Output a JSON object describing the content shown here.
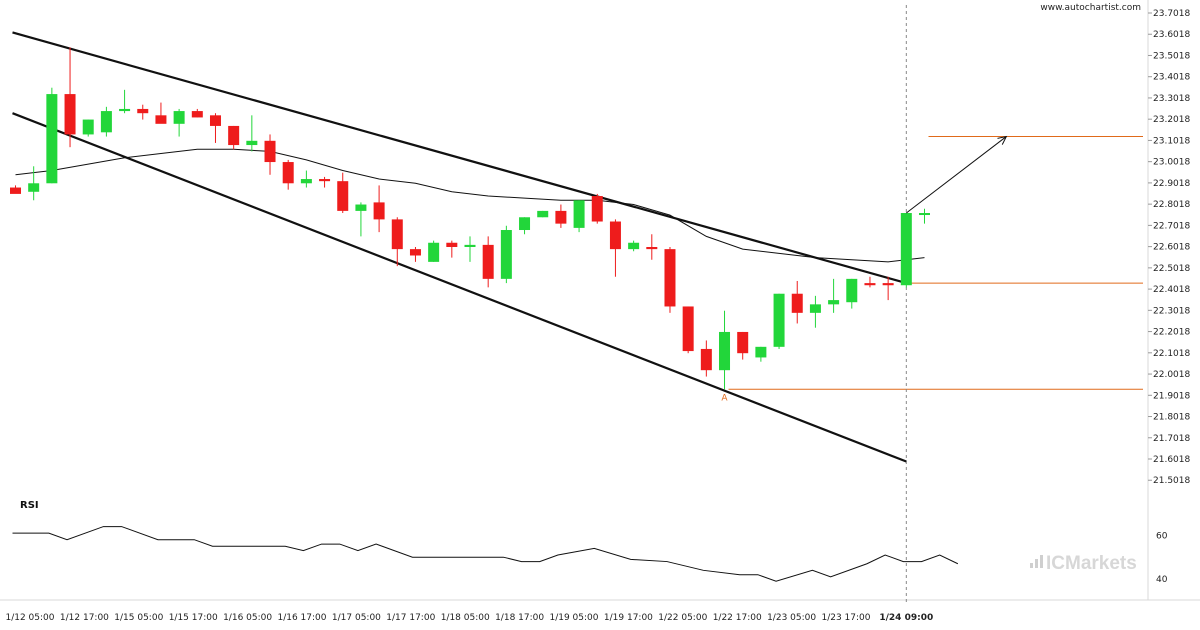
{
  "header": {
    "site": "www.autochartist.com"
  },
  "brand": {
    "name": "ICMarkets"
  },
  "colors": {
    "bull": "#22d63a",
    "bear": "#ee1c1c",
    "line": "#111111",
    "level": "#e06a1a",
    "axis": "#d8d8d8"
  },
  "chart_data": {
    "type": "candlestick",
    "y_ticks": [
      "23.7018",
      "23.6018",
      "23.5018",
      "23.4018",
      "23.3018",
      "23.2018",
      "23.1018",
      "23.0018",
      "22.9018",
      "22.8018",
      "22.7018",
      "22.6018",
      "22.5018",
      "22.4018",
      "22.3018",
      "22.2018",
      "22.1018",
      "22.0018",
      "21.9018",
      "21.8018",
      "21.7018",
      "21.6018",
      "21.5018"
    ],
    "ylim": [
      21.47,
      23.73
    ],
    "x_ticks": [
      "1/12 05:00",
      "1/12 17:00",
      "1/15 05:00",
      "1/15 17:00",
      "1/16 05:00",
      "1/16 17:00",
      "1/17 05:00",
      "1/17 17:00",
      "1/18 05:00",
      "1/18 17:00",
      "1/19 05:00",
      "1/19 17:00",
      "1/22 05:00",
      "1/22 17:00",
      "1/23 05:00",
      "1/23 17:00",
      "1/24 09:00"
    ],
    "highlight_x_tick": "1/24 09:00",
    "candles": [
      {
        "o": 22.88,
        "h": 22.89,
        "l": 22.86,
        "c": 22.85
      },
      {
        "o": 22.86,
        "h": 22.98,
        "l": 22.82,
        "c": 22.9
      },
      {
        "o": 22.9,
        "h": 23.35,
        "l": 22.9,
        "c": 23.32
      },
      {
        "o": 23.32,
        "h": 23.54,
        "l": 23.07,
        "c": 23.13
      },
      {
        "o": 23.13,
        "h": 23.2,
        "l": 23.12,
        "c": 23.2
      },
      {
        "o": 23.14,
        "h": 23.26,
        "l": 23.12,
        "c": 23.24
      },
      {
        "o": 23.24,
        "h": 23.34,
        "l": 23.23,
        "c": 23.25
      },
      {
        "o": 23.25,
        "h": 23.27,
        "l": 23.2,
        "c": 23.23
      },
      {
        "o": 23.22,
        "h": 23.28,
        "l": 23.19,
        "c": 23.18
      },
      {
        "o": 23.18,
        "h": 23.25,
        "l": 23.12,
        "c": 23.24
      },
      {
        "o": 23.24,
        "h": 23.25,
        "l": 23.21,
        "c": 23.21
      },
      {
        "o": 23.22,
        "h": 23.23,
        "l": 23.09,
        "c": 23.17
      },
      {
        "o": 23.17,
        "h": 23.17,
        "l": 23.06,
        "c": 23.08
      },
      {
        "o": 23.08,
        "h": 23.22,
        "l": 23.05,
        "c": 23.1
      },
      {
        "o": 23.1,
        "h": 23.13,
        "l": 22.94,
        "c": 23.0
      },
      {
        "o": 23.0,
        "h": 23.01,
        "l": 22.87,
        "c": 22.9
      },
      {
        "o": 22.9,
        "h": 22.96,
        "l": 22.88,
        "c": 22.92
      },
      {
        "o": 22.92,
        "h": 22.93,
        "l": 22.88,
        "c": 22.91
      },
      {
        "o": 22.91,
        "h": 22.95,
        "l": 22.76,
        "c": 22.77
      },
      {
        "o": 22.77,
        "h": 22.81,
        "l": 22.65,
        "c": 22.8
      },
      {
        "o": 22.81,
        "h": 22.89,
        "l": 22.67,
        "c": 22.73
      },
      {
        "o": 22.73,
        "h": 22.74,
        "l": 22.51,
        "c": 22.59
      },
      {
        "o": 22.59,
        "h": 22.6,
        "l": 22.53,
        "c": 22.56
      },
      {
        "o": 22.53,
        "h": 22.63,
        "l": 22.53,
        "c": 22.62
      },
      {
        "o": 22.62,
        "h": 22.63,
        "l": 22.55,
        "c": 22.6
      },
      {
        "o": 22.6,
        "h": 22.65,
        "l": 22.53,
        "c": 22.61
      },
      {
        "o": 22.61,
        "h": 22.65,
        "l": 22.41,
        "c": 22.45
      },
      {
        "o": 22.45,
        "h": 22.7,
        "l": 22.43,
        "c": 22.68
      },
      {
        "o": 22.68,
        "h": 22.74,
        "l": 22.66,
        "c": 22.74
      },
      {
        "o": 22.74,
        "h": 22.77,
        "l": 22.74,
        "c": 22.77
      },
      {
        "o": 22.77,
        "h": 22.8,
        "l": 22.69,
        "c": 22.71
      },
      {
        "o": 22.69,
        "h": 22.82,
        "l": 22.67,
        "c": 22.82
      },
      {
        "o": 22.84,
        "h": 22.85,
        "l": 22.71,
        "c": 22.72
      },
      {
        "o": 22.72,
        "h": 22.73,
        "l": 22.46,
        "c": 22.59
      },
      {
        "o": 22.59,
        "h": 22.63,
        "l": 22.58,
        "c": 22.62
      },
      {
        "o": 22.6,
        "h": 22.66,
        "l": 22.54,
        "c": 22.59
      },
      {
        "o": 22.59,
        "h": 22.6,
        "l": 22.29,
        "c": 22.32
      },
      {
        "o": 22.32,
        "h": 22.32,
        "l": 22.1,
        "c": 22.11
      },
      {
        "o": 22.12,
        "h": 22.16,
        "l": 21.99,
        "c": 22.02
      },
      {
        "o": 22.02,
        "h": 22.3,
        "l": 21.93,
        "c": 22.2
      },
      {
        "o": 22.2,
        "h": 22.2,
        "l": 22.07,
        "c": 22.1
      },
      {
        "o": 22.08,
        "h": 22.13,
        "l": 22.06,
        "c": 22.13
      },
      {
        "o": 22.13,
        "h": 22.38,
        "l": 22.12,
        "c": 22.38
      },
      {
        "o": 22.38,
        "h": 22.44,
        "l": 22.24,
        "c": 22.29
      },
      {
        "o": 22.29,
        "h": 22.37,
        "l": 22.22,
        "c": 22.33
      },
      {
        "o": 22.33,
        "h": 22.45,
        "l": 22.29,
        "c": 22.35
      },
      {
        "o": 22.34,
        "h": 22.45,
        "l": 22.31,
        "c": 22.45
      },
      {
        "o": 22.43,
        "h": 22.46,
        "l": 22.41,
        "c": 22.42
      },
      {
        "o": 22.43,
        "h": 22.46,
        "l": 22.35,
        "c": 22.42
      },
      {
        "o": 22.42,
        "h": 22.76,
        "l": 22.41,
        "c": 22.76
      },
      {
        "o": 22.76,
        "h": 22.78,
        "l": 22.71,
        "c": 22.76
      }
    ],
    "channel_upper": [
      [
        0,
        23.61
      ],
      [
        49,
        22.43
      ]
    ],
    "channel_lower": [
      [
        0,
        23.23
      ],
      [
        49,
        21.59
      ]
    ],
    "moving_average": [
      [
        0,
        22.94
      ],
      [
        2,
        22.96
      ],
      [
        4,
        22.99
      ],
      [
        6,
        23.02
      ],
      [
        8,
        23.04
      ],
      [
        10,
        23.06
      ],
      [
        12,
        23.06
      ],
      [
        14,
        23.05
      ],
      [
        16,
        23.01
      ],
      [
        18,
        22.96
      ],
      [
        20,
        22.92
      ],
      [
        22,
        22.9
      ],
      [
        24,
        22.86
      ],
      [
        26,
        22.84
      ],
      [
        28,
        22.83
      ],
      [
        30,
        22.82
      ],
      [
        32,
        22.82
      ],
      [
        34,
        22.8
      ],
      [
        36,
        22.75
      ],
      [
        38,
        22.65
      ],
      [
        40,
        22.59
      ],
      [
        42,
        22.57
      ],
      [
        44,
        22.55
      ],
      [
        46,
        22.54
      ],
      [
        48,
        22.53
      ],
      [
        49,
        22.54
      ],
      [
        50,
        22.55
      ]
    ],
    "levels": [
      {
        "value": 23.12,
        "from": 50
      },
      {
        "value": 22.43,
        "from": 49
      },
      {
        "value": 21.93,
        "from": 39
      }
    ],
    "forecast_arrow": {
      "from": [
        49,
        22.76
      ],
      "to": [
        54.5,
        23.12
      ]
    },
    "vertical_marker_index": 49,
    "pivot_label": {
      "text": "A",
      "index": 39,
      "value": 21.93
    },
    "rsi": {
      "label": "RSI",
      "ticks": [
        "60",
        "40"
      ],
      "ylim": [
        35,
        67
      ],
      "values": [
        [
          0,
          61
        ],
        [
          2,
          61
        ],
        [
          3,
          58
        ],
        [
          5,
          64
        ],
        [
          6,
          64
        ],
        [
          8,
          58
        ],
        [
          10,
          58
        ],
        [
          11,
          55
        ],
        [
          15,
          55
        ],
        [
          16,
          53
        ],
        [
          17,
          56
        ],
        [
          18,
          56
        ],
        [
          19,
          53
        ],
        [
          20,
          56
        ],
        [
          22,
          50
        ],
        [
          27,
          50
        ],
        [
          28,
          48
        ],
        [
          29,
          48
        ],
        [
          30,
          51
        ],
        [
          32,
          54
        ],
        [
          34,
          49
        ],
        [
          36,
          48
        ],
        [
          37,
          46
        ],
        [
          38,
          44
        ],
        [
          40,
          42
        ],
        [
          41,
          42
        ],
        [
          42,
          39
        ],
        [
          44,
          44
        ],
        [
          45,
          41
        ],
        [
          47,
          47
        ],
        [
          48,
          51
        ],
        [
          49,
          48
        ],
        [
          50,
          48
        ],
        [
          51,
          51
        ],
        [
          52,
          47
        ]
      ]
    }
  }
}
